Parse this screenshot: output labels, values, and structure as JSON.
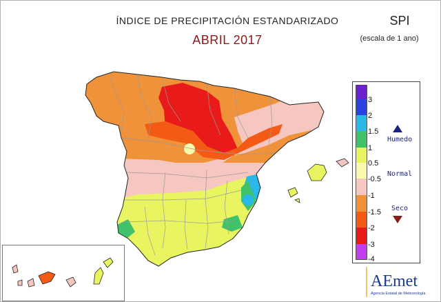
{
  "header": {
    "title": "ÍNDICE DE PRECIPITACIÓN ESTANDARIZADO",
    "subtitle": "ABRIL 2017",
    "index_name": "SPI",
    "scale_note": "(escala de 1 ano)"
  },
  "legend": {
    "ticks": [
      "3",
      "2",
      "1.5",
      "1",
      "0.5",
      "-0.5",
      "-1",
      "-1.5",
      "-2",
      "-3",
      "-4"
    ],
    "colors": [
      "#6a1fd0",
      "#2a43e0",
      "#29b8e8",
      "#3fc26a",
      "#e9f560",
      "#f9f9b0",
      "#f6c7c0",
      "#f0923a",
      "#f25a16",
      "#e81a1a",
      "#c040f0"
    ],
    "labels": {
      "wet": "Humedo",
      "normal": "Normal",
      "dry": "Seco"
    },
    "wet_arrow_color": "#1a237e",
    "dry_arrow_color": "#8b1a1a"
  },
  "logo": {
    "name": "AEmet",
    "caption": "Agencia Estatal de Meteorología"
  }
}
